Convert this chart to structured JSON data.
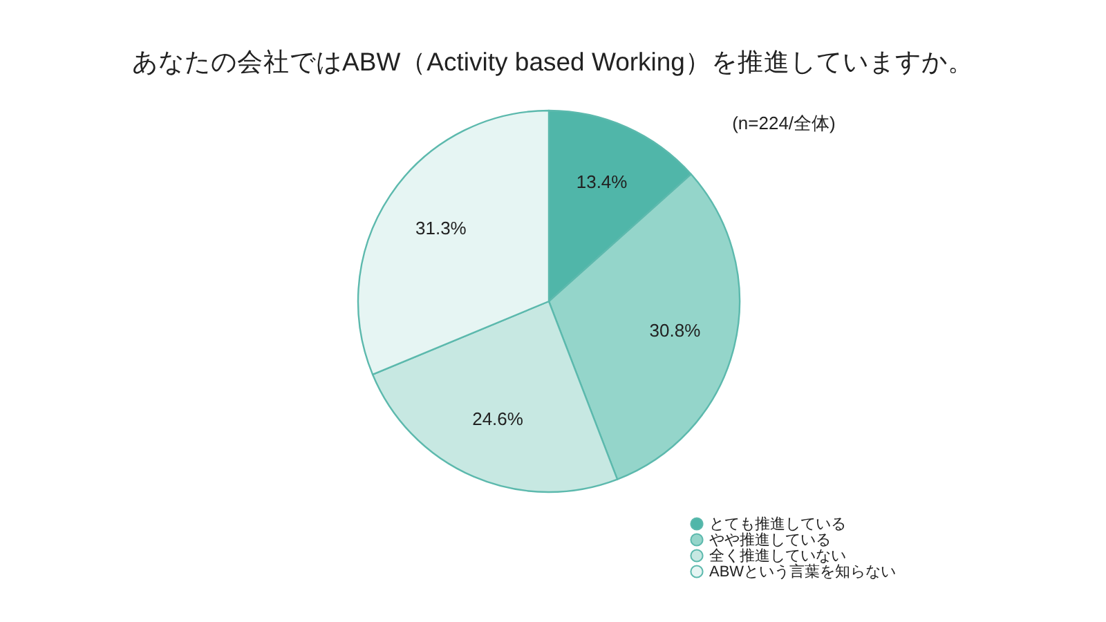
{
  "chart_data": {
    "type": "pie",
    "title": "あなたの会社ではABW（Activity based Working）を推進していますか。",
    "annotations": [
      "(n=224/全体)"
    ],
    "categories": [
      "とても推進している",
      "やや推進している",
      "全く推進していない",
      "ABWという言葉を知らない"
    ],
    "values": [
      13.4,
      30.8,
      24.6,
      31.3
    ],
    "value_labels": [
      "13.4%",
      "30.8%",
      "24.6%",
      "31.3%"
    ],
    "colors": [
      "#50b6a9",
      "#94d5ca",
      "#c7e8e2",
      "#e6f5f3"
    ],
    "legend": "bottom right"
  }
}
